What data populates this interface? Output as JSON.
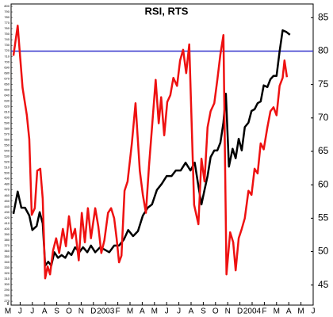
{
  "chart_data": {
    "type": "line",
    "title": "RSI, RTS",
    "x": [],
    "series": [
      {
        "name": "RTS",
        "color": "#000000",
        "axis": "y",
        "x": [
          0.45,
          0.8,
          1.1,
          1.4,
          1.75,
          2.0,
          2.35,
          2.6,
          2.85,
          3.05,
          3.3,
          3.55,
          3.8,
          4.1,
          4.4,
          4.7,
          4.95,
          5.2,
          5.5,
          5.85,
          6.15,
          6.5,
          6.8,
          7.15,
          7.55,
          7.9,
          8.3,
          8.7,
          9.1,
          9.5,
          9.85,
          10.25,
          10.65,
          11.05,
          11.45,
          11.8,
          12.2,
          12.6,
          13.0,
          13.4,
          13.75,
          14.15,
          14.55,
          14.95,
          15.3,
          15.6,
          15.85,
          16.1,
          16.35,
          16.6,
          16.9,
          17.15,
          17.4,
          17.65,
          17.85,
          18.1,
          18.4,
          18.65,
          18.9,
          19.15,
          19.4,
          19.7,
          19.95,
          20.2,
          20.45,
          20.7,
          20.95,
          21.25,
          21.5,
          21.75,
          22.0,
          22.25,
          22.5,
          22.8,
          23.1
        ],
        "values": [
          427,
          467,
          438,
          438,
          424,
          398,
          405,
          430,
          410,
          334,
          341,
          334,
          358,
          348,
          353,
          348,
          358,
          353,
          367,
          358,
          367,
          358,
          370,
          358,
          367,
          363,
          358,
          370,
          370,
          381,
          398,
          387,
          396,
          424,
          438,
          444,
          470,
          481,
          495,
          495,
          505,
          505,
          519,
          505,
          519,
          477,
          444,
          470,
          495,
          529,
          541,
          541,
          555,
          591,
          643,
          512,
          544,
          527,
          562,
          541,
          583,
          591,
          612,
          615,
          626,
          629,
          658,
          655,
          669,
          675,
          675,
          719,
          757,
          754,
          749
        ]
      },
      {
        "name": "RSI",
        "color": "#ee1111",
        "axis": "y2",
        "x": [
          0.45,
          0.8,
          1.2,
          1.55,
          1.75,
          1.95,
          2.2,
          2.4,
          2.65,
          2.85,
          3.05,
          3.25,
          3.45,
          3.7,
          3.95,
          4.2,
          4.5,
          4.75,
          5.0,
          5.25,
          5.5,
          5.8,
          6.05,
          6.3,
          6.55,
          6.8,
          7.15,
          7.4,
          7.65,
          7.9,
          8.2,
          8.45,
          8.7,
          8.9,
          9.1,
          9.3,
          9.55,
          9.8,
          10.15,
          10.45,
          10.8,
          11.05,
          11.3,
          11.55,
          11.8,
          12.1,
          12.35,
          12.55,
          12.8,
          13.05,
          13.3,
          13.55,
          13.85,
          14.1,
          14.35,
          14.6,
          14.85,
          15.25,
          15.6,
          15.85,
          16.1,
          16.35,
          16.6,
          16.9,
          17.15,
          17.4,
          17.65,
          17.9,
          18.2,
          18.45,
          18.65,
          18.9,
          19.15,
          19.4,
          19.7,
          19.95,
          20.2,
          20.45,
          20.7,
          20.95,
          21.25,
          21.5,
          21.75,
          22.0,
          22.25,
          22.5,
          22.65,
          22.85
        ],
        "values": [
          79.3,
          83.8,
          74.5,
          70.4,
          66.8,
          55.5,
          56.5,
          62.1,
          62.4,
          57.9,
          46.0,
          47.8,
          46.6,
          50.2,
          52.0,
          49.8,
          53.4,
          50.8,
          55.3,
          52.0,
          53.4,
          48.7,
          55.8,
          51.4,
          56.5,
          52.0,
          56.5,
          53.8,
          49.8,
          51.7,
          55.8,
          56.5,
          55.0,
          52.0,
          48.4,
          49.4,
          59.1,
          60.5,
          66.2,
          72.2,
          62.1,
          58.5,
          55.8,
          62.7,
          68.6,
          75.7,
          69.2,
          73.1,
          67.4,
          72.4,
          73.4,
          76.0,
          74.8,
          78.6,
          80.2,
          76.7,
          81.0,
          57.0,
          54.1,
          63.9,
          60.5,
          68.6,
          71.0,
          72.2,
          75.7,
          79.5,
          82.4,
          46.6,
          52.9,
          51.4,
          47.2,
          52.0,
          53.4,
          55.0,
          59.1,
          58.5,
          62.4,
          61.7,
          66.2,
          65.3,
          68.6,
          71.0,
          71.6,
          70.4,
          74.8,
          76.0,
          78.6,
          76.1
        ]
      }
    ],
    "hline": {
      "value": 80,
      "axis": "y2",
      "color": "#3333cc"
    },
    "xlim": [
      0.26,
      25
    ],
    "xticks": [
      {
        "value": 0,
        "label": "M"
      },
      {
        "value": 1,
        "label": "J"
      },
      {
        "value": 2,
        "label": "J"
      },
      {
        "value": 3,
        "label": "A"
      },
      {
        "value": 4,
        "label": "S"
      },
      {
        "value": 5,
        "label": "O"
      },
      {
        "value": 6,
        "label": "N"
      },
      {
        "value": 7,
        "label": "D"
      },
      {
        "value": 8,
        "label": "2003"
      },
      {
        "value": 9,
        "label": "F"
      },
      {
        "value": 10,
        "label": "M"
      },
      {
        "value": 11,
        "label": "A"
      },
      {
        "value": 12,
        "label": "M"
      },
      {
        "value": 13,
        "label": "J"
      },
      {
        "value": 14,
        "label": "J"
      },
      {
        "value": 15,
        "label": "A"
      },
      {
        "value": 16,
        "label": "S"
      },
      {
        "value": 17,
        "label": "O"
      },
      {
        "value": 18,
        "label": "N"
      },
      {
        "value": 19,
        "label": "D"
      },
      {
        "value": 20,
        "label": "2004"
      },
      {
        "value": 21,
        "label": "F"
      },
      {
        "value": 22,
        "label": "M"
      },
      {
        "value": 23,
        "label": "A"
      },
      {
        "value": 24,
        "label": "M"
      },
      {
        "value": 25,
        "label": "J"
      }
    ],
    "ylim": [
      263,
      804.3
    ],
    "yticks": [
      270,
      280,
      290,
      300,
      310,
      320,
      330,
      340,
      350,
      360,
      370,
      380,
      390,
      400,
      410,
      420,
      430,
      440,
      450,
      460,
      470,
      480,
      490,
      500,
      510,
      520,
      530,
      540,
      550,
      560,
      570,
      580,
      590,
      600,
      610,
      620,
      630,
      640,
      650,
      660,
      670,
      680,
      690,
      700,
      710,
      720,
      730,
      740,
      750,
      760,
      770,
      780,
      790,
      800
    ],
    "y2lim": [
      42,
      87.05
    ],
    "y2ticks": [
      45,
      50,
      55,
      60,
      65,
      70,
      75,
      80,
      85
    ]
  }
}
